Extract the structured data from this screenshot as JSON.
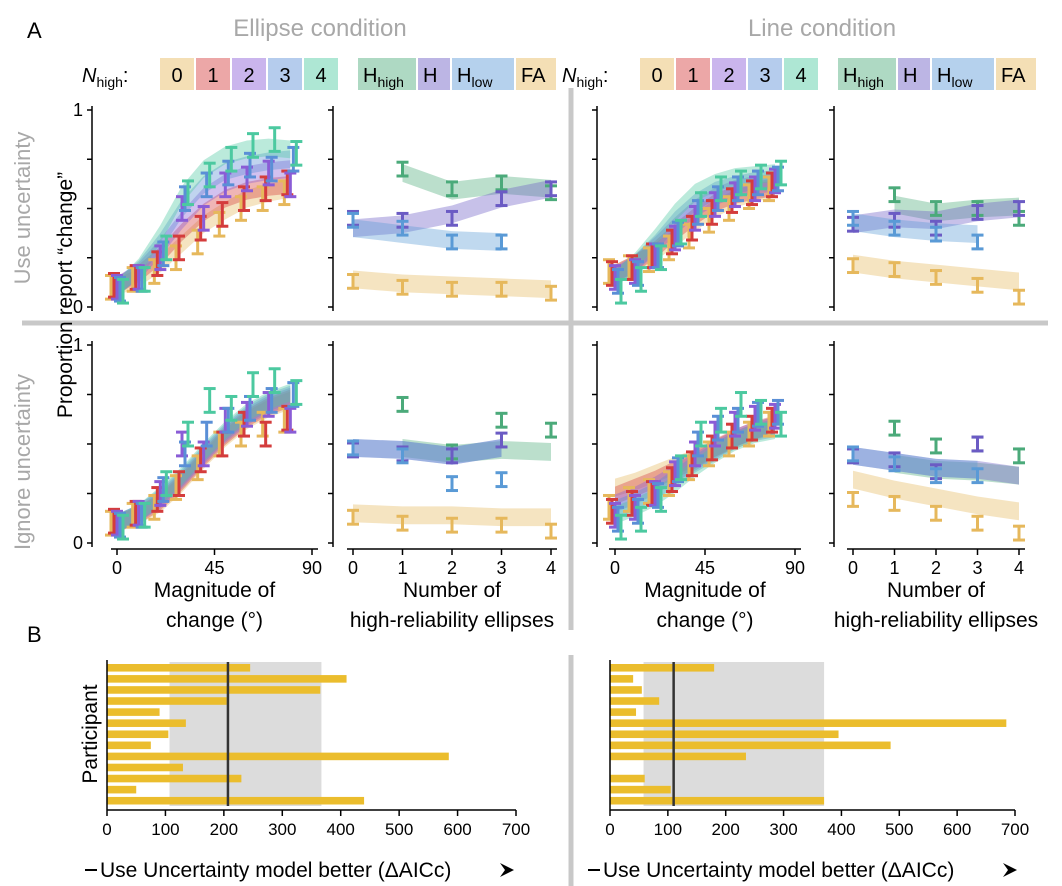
{
  "panel_letters": {
    "a": "A",
    "b": "B"
  },
  "conditions": {
    "ellipse": "Ellipse condition",
    "line": "Line condition"
  },
  "row_labels": {
    "top": "Use uncertainty",
    "bottom": "Ignore uncertainty"
  },
  "shared_ylabel": "Proportion report “change”",
  "legend_n": {
    "prefix_main": "N",
    "prefix_sub": "high",
    "prefix_colon": ":",
    "items": [
      {
        "label": "0",
        "color": "#E6B85C"
      },
      {
        "label": "1",
        "color": "#D43C3C"
      },
      {
        "label": "2",
        "color": "#8A5CD6"
      },
      {
        "label": "3",
        "color": "#5A8FD6"
      },
      {
        "label": "4",
        "color": "#4CC9A0"
      }
    ]
  },
  "legend_rate": [
    {
      "main": "H",
      "sub": "high",
      "color": "#4BAA7A"
    },
    {
      "main": "H",
      "sub": "",
      "color": "#6B5BC4"
    },
    {
      "main": "H",
      "sub": "low",
      "color": "#5A9AD6"
    },
    {
      "main": "FA",
      "sub": "",
      "color": "#E6B85C"
    }
  ],
  "axes_text": {
    "y_ticks": [
      "0",
      "1"
    ],
    "mag_ticks": [
      "0",
      "45",
      "90"
    ],
    "num_ticks": [
      "0",
      "1",
      "2",
      "3",
      "4"
    ],
    "mag_xlabel_1": "Magnitude of",
    "mag_xlabel_2": "change (°)",
    "num_xlabel_1": "Number of",
    "num_xlabel_2": "high-reliability ellipses",
    "bar_ylabel": "Participant",
    "bar_xlabel": "Use Uncertainty model better (ΔAICc)",
    "bar_ticks": [
      "0",
      "100",
      "200",
      "300",
      "400",
      "500",
      "600",
      "700"
    ]
  },
  "chart_data": [
    {
      "type": "line",
      "id": "ellipse_use_magnitude",
      "xlabel": "Magnitude of change (°)",
      "ylabel": "Proportion report “change”",
      "xlim": [
        0,
        90
      ],
      "ylim": [
        0,
        1
      ],
      "x": [
        0,
        10,
        20,
        30,
        40,
        50,
        60,
        70,
        80
      ],
      "series": [
        {
          "name": "0",
          "data": [
            0.1,
            0.14,
            0.18,
            0.25,
            0.33,
            0.42,
            0.5,
            0.55,
            0.58
          ],
          "model": [
            0.1,
            0.15,
            0.22,
            0.32,
            0.42,
            0.49,
            0.55,
            0.58,
            0.6
          ]
        },
        {
          "name": "1",
          "data": [
            0.11,
            0.15,
            0.22,
            0.3,
            0.4,
            0.47,
            0.55,
            0.6,
            0.63
          ],
          "model": [
            0.11,
            0.17,
            0.26,
            0.38,
            0.48,
            0.55,
            0.59,
            0.61,
            0.62
          ]
        },
        {
          "name": "2",
          "data": [
            0.1,
            0.15,
            0.25,
            0.5,
            0.45,
            0.62,
            0.65,
            0.68,
            0.62
          ],
          "model": [
            0.11,
            0.18,
            0.3,
            0.44,
            0.56,
            0.63,
            0.67,
            0.69,
            0.7
          ]
        },
        {
          "name": "3",
          "data": [
            0.09,
            0.14,
            0.27,
            0.55,
            0.62,
            0.68,
            0.72,
            0.7,
            0.75
          ],
          "model": [
            0.1,
            0.19,
            0.33,
            0.5,
            0.62,
            0.69,
            0.72,
            0.74,
            0.75
          ]
        },
        {
          "name": "4",
          "data": [
            0.08,
            0.14,
            0.3,
            0.58,
            0.67,
            0.75,
            0.82,
            0.85,
            0.78
          ],
          "model": [
            0.09,
            0.2,
            0.37,
            0.57,
            0.7,
            0.77,
            0.8,
            0.81,
            0.8
          ]
        }
      ]
    },
    {
      "type": "line",
      "id": "ellipse_use_number",
      "xlabel": "Number of high-reliability ellipses",
      "ylim": [
        0,
        1
      ],
      "x": [
        0,
        1,
        2,
        3,
        4
      ],
      "series": [
        {
          "name": "H_high",
          "data": [
            null,
            0.7,
            0.6,
            0.63,
            0.58
          ],
          "model": [
            null,
            0.68,
            0.59,
            0.62,
            0.6
          ]
        },
        {
          "name": "H",
          "data": [
            0.45,
            0.44,
            0.45,
            0.55,
            0.6
          ],
          "model": [
            0.4,
            0.42,
            0.47,
            0.55,
            0.6
          ]
        },
        {
          "name": "H_low",
          "data": [
            0.44,
            0.4,
            0.33,
            0.33,
            null
          ],
          "model": [
            0.4,
            0.37,
            0.34,
            0.33,
            null
          ]
        },
        {
          "name": "FA",
          "data": [
            0.13,
            0.1,
            0.09,
            0.09,
            0.07
          ],
          "model": [
            0.14,
            0.12,
            0.11,
            0.1,
            0.09
          ]
        }
      ]
    },
    {
      "type": "line",
      "id": "line_use_magnitude",
      "xlim": [
        0,
        90
      ],
      "ylim": [
        0,
        1
      ],
      "x": [
        0,
        10,
        20,
        30,
        40,
        50,
        60,
        70,
        80
      ],
      "series": [
        {
          "name": "0",
          "data": [
            0.18,
            0.2,
            0.24,
            0.3,
            0.36,
            0.44,
            0.5,
            0.56,
            0.6
          ],
          "model": [
            0.17,
            0.22,
            0.28,
            0.35,
            0.43,
            0.5,
            0.55,
            0.58,
            0.6
          ]
        },
        {
          "name": "1",
          "data": [
            0.17,
            0.2,
            0.26,
            0.33,
            0.4,
            0.48,
            0.54,
            0.58,
            0.62
          ],
          "model": [
            0.17,
            0.22,
            0.29,
            0.38,
            0.46,
            0.53,
            0.57,
            0.59,
            0.61
          ]
        },
        {
          "name": "2",
          "data": [
            0.15,
            0.18,
            0.26,
            0.35,
            0.45,
            0.52,
            0.57,
            0.6,
            0.64
          ],
          "model": [
            0.16,
            0.22,
            0.31,
            0.41,
            0.5,
            0.56,
            0.6,
            0.62,
            0.63
          ]
        },
        {
          "name": "3",
          "data": [
            0.13,
            0.17,
            0.26,
            0.37,
            0.48,
            0.55,
            0.6,
            0.63,
            0.65
          ],
          "model": [
            0.15,
            0.22,
            0.32,
            0.44,
            0.53,
            0.59,
            0.62,
            0.64,
            0.65
          ]
        },
        {
          "name": "4",
          "data": [
            0.08,
            0.14,
            0.25,
            0.38,
            0.52,
            0.6,
            0.63,
            0.66,
            0.68
          ],
          "model": [
            0.14,
            0.23,
            0.35,
            0.48,
            0.58,
            0.63,
            0.66,
            0.67,
            0.68
          ]
        }
      ]
    },
    {
      "type": "line",
      "id": "line_use_number",
      "ylim": [
        0,
        1
      ],
      "x": [
        0,
        1,
        2,
        3,
        4
      ],
      "series": [
        {
          "name": "H_high",
          "data": [
            null,
            0.57,
            0.5,
            0.5,
            0.45
          ],
          "model": [
            null,
            0.52,
            0.48,
            0.5,
            0.51
          ]
        },
        {
          "name": "H",
          "data": [
            0.42,
            0.44,
            0.4,
            0.48,
            0.5
          ],
          "model": [
            0.42,
            0.45,
            0.44,
            0.48,
            0.5
          ]
        },
        {
          "name": "H_low",
          "data": [
            0.45,
            0.4,
            0.37,
            0.33,
            null
          ],
          "model": [
            0.43,
            0.4,
            0.38,
            0.37,
            null
          ]
        },
        {
          "name": "FA",
          "data": [
            0.21,
            0.19,
            0.15,
            0.11,
            0.05
          ],
          "model": [
            0.22,
            0.19,
            0.17,
            0.15,
            0.13
          ]
        }
      ]
    },
    {
      "type": "line",
      "id": "ellipse_ignore_magnitude",
      "xlim": [
        0,
        90
      ],
      "ylim": [
        0,
        1
      ],
      "x": [
        0,
        10,
        20,
        30,
        40,
        50,
        60,
        70,
        80
      ],
      "series": [
        {
          "name": "0",
          "data": [
            0.1,
            0.14,
            0.18,
            0.28,
            0.38,
            0.5,
            0.55,
            0.6,
            0.62
          ],
          "model": [
            0.1,
            0.14,
            0.2,
            0.3,
            0.42,
            0.53,
            0.62,
            0.68,
            0.72
          ]
        },
        {
          "name": "1",
          "data": [
            0.11,
            0.15,
            0.22,
            0.3,
            0.42,
            0.5,
            0.6,
            0.55,
            0.63
          ],
          "model": [
            0.1,
            0.14,
            0.21,
            0.31,
            0.43,
            0.54,
            0.63,
            0.69,
            0.73
          ]
        },
        {
          "name": "2",
          "data": [
            0.1,
            0.15,
            0.25,
            0.5,
            0.45,
            0.62,
            0.65,
            0.7,
            0.62
          ],
          "model": [
            0.1,
            0.15,
            0.22,
            0.32,
            0.44,
            0.55,
            0.64,
            0.7,
            0.74
          ]
        },
        {
          "name": "3",
          "data": [
            0.09,
            0.14,
            0.27,
            0.45,
            0.55,
            0.62,
            0.68,
            0.72,
            0.75
          ],
          "model": [
            0.1,
            0.15,
            0.23,
            0.33,
            0.45,
            0.56,
            0.65,
            0.71,
            0.75
          ]
        },
        {
          "name": "4",
          "data": [
            0.08,
            0.14,
            0.3,
            0.55,
            0.72,
            0.68,
            0.8,
            0.82,
            0.76
          ],
          "model": [
            0.1,
            0.15,
            0.24,
            0.34,
            0.46,
            0.57,
            0.66,
            0.72,
            0.76
          ]
        }
      ]
    },
    {
      "type": "line",
      "id": "ellipse_ignore_number",
      "ylim": [
        0,
        1
      ],
      "x": [
        0,
        1,
        2,
        3,
        4
      ],
      "series": [
        {
          "name": "H_high",
          "data": [
            null,
            0.7,
            0.46,
            0.62,
            0.57
          ],
          "model": [
            null,
            0.48,
            0.45,
            0.47,
            0.46
          ]
        },
        {
          "name": "H",
          "data": [
            0.47,
            0.45,
            0.44,
            0.52,
            null
          ],
          "model": [
            0.48,
            0.47,
            0.44,
            0.48,
            null
          ]
        },
        {
          "name": "H_low",
          "data": [
            0.48,
            0.44,
            0.3,
            0.32,
            null
          ],
          "model": [
            0.48,
            0.47,
            0.44,
            0.48,
            null
          ]
        },
        {
          "name": "FA",
          "data": [
            0.13,
            0.1,
            0.09,
            0.09,
            0.06
          ],
          "model": [
            0.15,
            0.14,
            0.14,
            0.13,
            0.13
          ]
        }
      ]
    },
    {
      "type": "line",
      "id": "line_ignore_magnitude",
      "xlim": [
        0,
        90
      ],
      "ylim": [
        0,
        1
      ],
      "x": [
        0,
        10,
        20,
        30,
        40,
        50,
        60,
        70,
        80
      ],
      "series": [
        {
          "name": "0",
          "data": [
            0.18,
            0.22,
            0.26,
            0.3,
            0.38,
            0.45,
            0.5,
            0.55,
            0.6
          ],
          "model": [
            0.28,
            0.31,
            0.35,
            0.39,
            0.43,
            0.48,
            0.52,
            0.56,
            0.6
          ]
        },
        {
          "name": "1",
          "data": [
            0.16,
            0.2,
            0.25,
            0.32,
            0.4,
            0.48,
            0.54,
            0.58,
            0.62
          ],
          "model": [
            0.24,
            0.28,
            0.32,
            0.37,
            0.42,
            0.48,
            0.53,
            0.57,
            0.6
          ]
        },
        {
          "name": "2",
          "data": [
            0.14,
            0.18,
            0.25,
            0.35,
            0.45,
            0.55,
            0.6,
            0.63,
            0.64
          ],
          "model": [
            0.2,
            0.24,
            0.29,
            0.35,
            0.41,
            0.47,
            0.53,
            0.57,
            0.59
          ]
        },
        {
          "name": "3",
          "data": [
            0.12,
            0.16,
            0.24,
            0.37,
            0.5,
            0.58,
            0.62,
            0.65,
            0.66
          ],
          "model": [
            0.17,
            0.21,
            0.26,
            0.33,
            0.4,
            0.46,
            0.52,
            0.56,
            0.58
          ]
        },
        {
          "name": "4",
          "data": [
            0.08,
            0.12,
            0.22,
            0.38,
            0.55,
            0.62,
            0.7,
            0.66,
            0.6
          ],
          "model": [
            0.14,
            0.18,
            0.23,
            0.3,
            0.38,
            0.45,
            0.51,
            0.55,
            0.57
          ]
        }
      ]
    },
    {
      "type": "line",
      "id": "line_ignore_number",
      "ylim": [
        0,
        1
      ],
      "x": [
        0,
        1,
        2,
        3,
        4
      ],
      "series": [
        {
          "name": "H_high",
          "data": [
            null,
            0.58,
            0.49,
            0.5,
            0.44
          ],
          "model": [
            null,
            0.4,
            0.37,
            0.36,
            0.34
          ]
        },
        {
          "name": "H",
          "data": [
            0.44,
            0.42,
            0.36,
            0.5,
            null
          ],
          "model": [
            0.44,
            0.41,
            0.38,
            0.37,
            0.34
          ]
        },
        {
          "name": "H_low",
          "data": [
            0.45,
            0.4,
            0.34,
            0.34,
            null
          ],
          "model": [
            0.44,
            0.41,
            0.38,
            0.37,
            null
          ]
        },
        {
          "name": "FA",
          "data": [
            0.22,
            0.2,
            0.15,
            0.1,
            0.05
          ],
          "model": [
            0.32,
            0.27,
            0.23,
            0.19,
            0.16
          ]
        }
      ]
    },
    {
      "type": "bar",
      "id": "ellipse_aicc",
      "orientation": "horizontal",
      "xlabel": "Use Uncertainty model better (ΔAICc)",
      "ylabel": "Participant",
      "xlim": [
        0,
        700
      ],
      "values": [
        245,
        410,
        365,
        205,
        90,
        135,
        105,
        75,
        585,
        130,
        230,
        50,
        440
      ],
      "median": 207,
      "shade": [
        107,
        367
      ],
      "color": "#EBBD2D"
    },
    {
      "type": "bar",
      "id": "line_aicc",
      "orientation": "horizontal",
      "xlabel": "Use Uncertainty model better (ΔAICc)",
      "ylabel": "Participant",
      "xlim": [
        0,
        700
      ],
      "values": [
        180,
        40,
        55,
        85,
        45,
        685,
        395,
        485,
        235,
        0,
        60,
        105,
        370
      ],
      "median": 110,
      "shade": [
        58,
        370
      ],
      "color": "#EBBD2D"
    }
  ]
}
